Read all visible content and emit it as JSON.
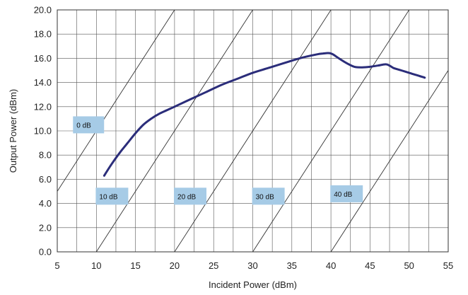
{
  "chart_data": {
    "type": "line",
    "title": "",
    "xlabel": "Incident Power (dBm)",
    "ylabel": "Output Power  (dBm)",
    "xlim": [
      5,
      55
    ],
    "ylim": [
      0,
      20
    ],
    "x_ticks": [
      "5",
      "10",
      "15",
      "20",
      "25",
      "30",
      "35",
      "40",
      "45",
      "50",
      "55"
    ],
    "y_ticks": [
      "0.0",
      "2.0",
      "4.0",
      "6.0",
      "8.0",
      "10.0",
      "12.0",
      "14.0",
      "16.0",
      "18.0",
      "20.0"
    ],
    "grid": true,
    "legend": "none",
    "colors": {
      "series": "#2b2d7a",
      "label_box": "#a6cbe6",
      "grid": "#555555",
      "gain_line": "#333333"
    },
    "series": [
      {
        "x": [
          11,
          12,
          13,
          14,
          15,
          16,
          17,
          18,
          19,
          20,
          22,
          24,
          26,
          28,
          30,
          32,
          34,
          36,
          38,
          39,
          40,
          41,
          42,
          43,
          44,
          45,
          46,
          47,
          47.5,
          48,
          49,
          50,
          51,
          52
        ],
        "y": [
          6.3,
          7.3,
          8.2,
          9.0,
          9.8,
          10.5,
          11.0,
          11.4,
          11.7,
          12.0,
          12.6,
          13.2,
          13.8,
          14.3,
          14.8,
          15.2,
          15.6,
          16.0,
          16.3,
          16.4,
          16.4,
          16.0,
          15.6,
          15.3,
          15.25,
          15.3,
          15.4,
          15.5,
          15.4,
          15.2,
          15.0,
          14.8,
          14.6,
          14.4
        ]
      }
    ],
    "gain_lines": [
      {
        "label": "0 dB",
        "offset": 0
      },
      {
        "label": "10 dB",
        "offset": 10
      },
      {
        "label": "20 dB",
        "offset": 20
      },
      {
        "label": "30 dB",
        "offset": 30
      },
      {
        "label": "40 dB",
        "offset": 40
      }
    ],
    "gain_label_anchors": [
      {
        "x": 9,
        "y": 10.5
      },
      {
        "x": 12,
        "y": 4.6
      },
      {
        "x": 22,
        "y": 4.6
      },
      {
        "x": 32,
        "y": 4.6
      },
      {
        "x": 42,
        "y": 4.8
      }
    ]
  }
}
